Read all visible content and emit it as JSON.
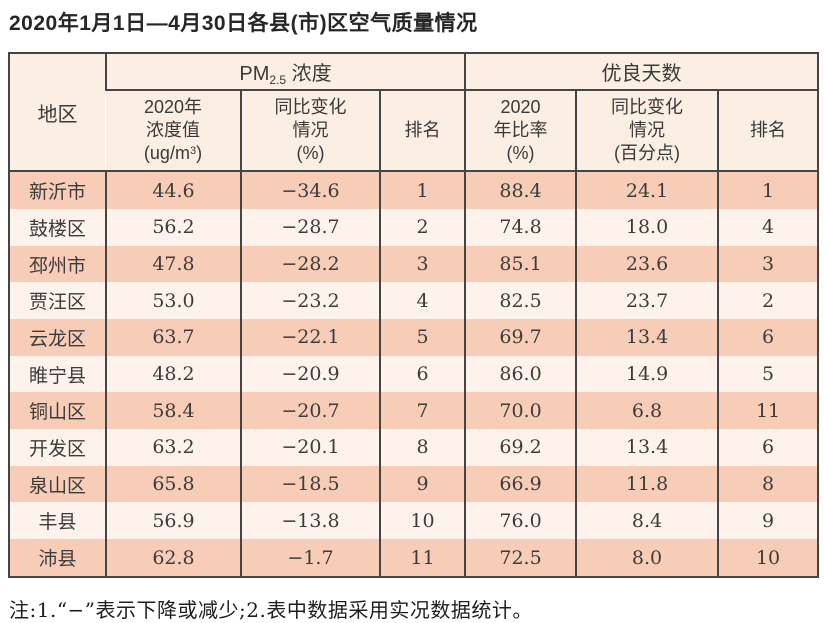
{
  "title": "2020年1月1日—4月30日各县(市)区空气质量情况",
  "table": {
    "region_header": "地区",
    "pm_group": {
      "prefix": "PM",
      "sub": "2.5",
      "suffix": " 浓度"
    },
    "good_days_group": "优良天数",
    "pm_cols": {
      "value": {
        "line1": "2020年",
        "line2": "浓度值",
        "line3_pre": "(ug/m",
        "line3_sup": "3",
        "line3_post": ")"
      },
      "change": {
        "line1": "同比变化",
        "line2": "情况",
        "line3": "(%)"
      },
      "rank": "排名"
    },
    "gd_cols": {
      "ratio": {
        "line1": "2020",
        "line2": "年比率",
        "line3": "(%)"
      },
      "change": {
        "line1": "同比变化",
        "line2": "情况",
        "line3": "(百分点)"
      },
      "rank": "排名"
    },
    "rows": [
      {
        "region": "新沂市",
        "pm_value": "44.6",
        "pm_change": "−34.6",
        "pm_rank": "1",
        "gd_ratio": "88.4",
        "gd_change": "24.1",
        "gd_rank": "1"
      },
      {
        "region": "鼓楼区",
        "pm_value": "56.2",
        "pm_change": "−28.7",
        "pm_rank": "2",
        "gd_ratio": "74.8",
        "gd_change": "18.0",
        "gd_rank": "4"
      },
      {
        "region": "邳州市",
        "pm_value": "47.8",
        "pm_change": "−28.2",
        "pm_rank": "3",
        "gd_ratio": "85.1",
        "gd_change": "23.6",
        "gd_rank": "3"
      },
      {
        "region": "贾汪区",
        "pm_value": "53.0",
        "pm_change": "−23.2",
        "pm_rank": "4",
        "gd_ratio": "82.5",
        "gd_change": "23.7",
        "gd_rank": "2"
      },
      {
        "region": "云龙区",
        "pm_value": "63.7",
        "pm_change": "−22.1",
        "pm_rank": "5",
        "gd_ratio": "69.7",
        "gd_change": "13.4",
        "gd_rank": "6"
      },
      {
        "region": "睢宁县",
        "pm_value": "48.2",
        "pm_change": "−20.9",
        "pm_rank": "6",
        "gd_ratio": "86.0",
        "gd_change": "14.9",
        "gd_rank": "5"
      },
      {
        "region": "铜山区",
        "pm_value": "58.4",
        "pm_change": "−20.7",
        "pm_rank": "7",
        "gd_ratio": "70.0",
        "gd_change": "6.8",
        "gd_rank": "11"
      },
      {
        "region": "开发区",
        "pm_value": "63.2",
        "pm_change": "−20.1",
        "pm_rank": "8",
        "gd_ratio": "69.2",
        "gd_change": "13.4",
        "gd_rank": "6"
      },
      {
        "region": "泉山区",
        "pm_value": "65.8",
        "pm_change": "−18.5",
        "pm_rank": "9",
        "gd_ratio": "66.9",
        "gd_change": "11.8",
        "gd_rank": "8"
      },
      {
        "region": "丰县",
        "pm_value": "56.9",
        "pm_change": "−13.8",
        "pm_rank": "10",
        "gd_ratio": "76.0",
        "gd_change": "8.4",
        "gd_rank": "9"
      },
      {
        "region": "沛县",
        "pm_value": "62.8",
        "pm_change": "−1.7",
        "pm_rank": "11",
        "gd_ratio": "72.5",
        "gd_change": "8.0",
        "gd_rank": "10"
      }
    ]
  },
  "footnote": "注:1.“−”表示下降或减少;2.表中数据采用实况数据统计。",
  "colors": {
    "row_odd": "#f8cdb8",
    "row_even": "#fdf3ec",
    "header_bg": "#fbeee2",
    "border": "#454545",
    "text": "#3a3a3a"
  }
}
